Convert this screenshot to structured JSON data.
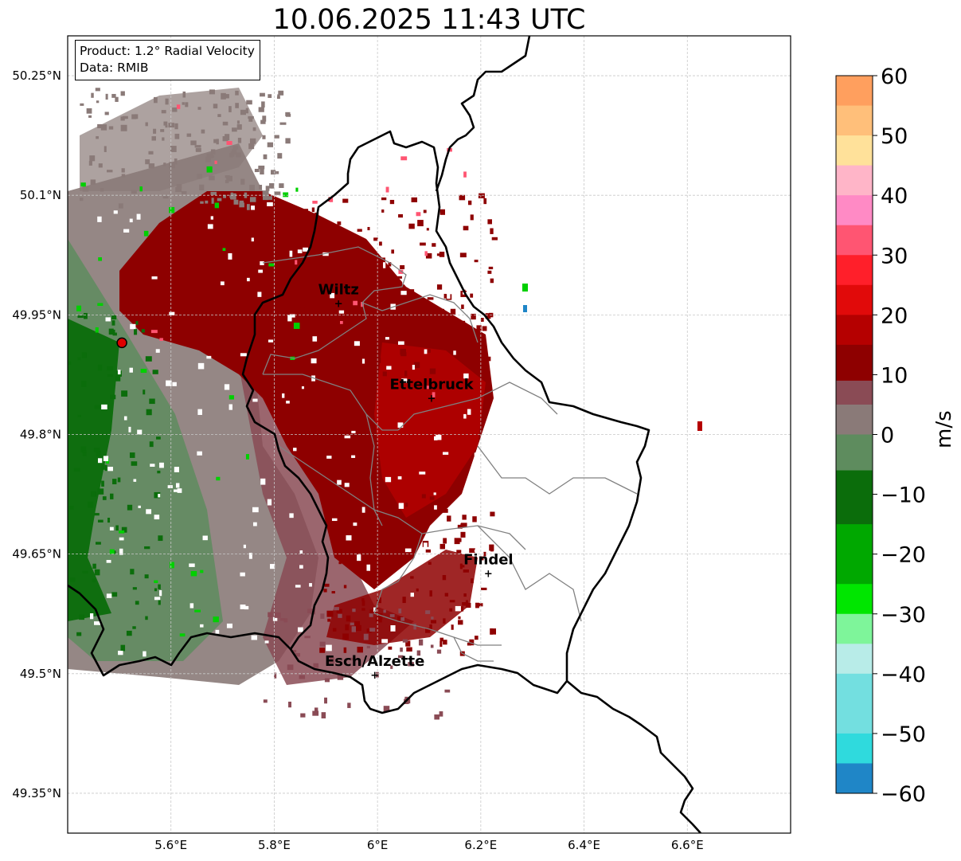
{
  "title": "10.06.2025 11:43 UTC",
  "info": {
    "product": "Product: 1.2° Radial Velocity",
    "data": "Data: RMIB"
  },
  "colorbar": {
    "label": "m/s",
    "min": -60,
    "max": 60,
    "ticks": [
      "60",
      "50",
      "40",
      "30",
      "20",
      "10",
      "0",
      "−10",
      "−20",
      "−30",
      "−40",
      "−50",
      "−60"
    ],
    "tick_values": [
      60,
      50,
      40,
      30,
      20,
      10,
      0,
      -10,
      -20,
      -30,
      -40,
      -50,
      -60
    ],
    "colors": [
      {
        "from": 55,
        "to": 60,
        "color": "#ff9f5e"
      },
      {
        "from": 50,
        "to": 55,
        "color": "#ffbf7a"
      },
      {
        "from": 45,
        "to": 50,
        "color": "#ffe19a"
      },
      {
        "from": 40,
        "to": 45,
        "color": "#ffb5c8"
      },
      {
        "from": 35,
        "to": 40,
        "color": "#ff8ac5"
      },
      {
        "from": 30,
        "to": 35,
        "color": "#ff5572"
      },
      {
        "from": 25,
        "to": 30,
        "color": "#ff1f2a"
      },
      {
        "from": 20,
        "to": 25,
        "color": "#e10a0a"
      },
      {
        "from": 15,
        "to": 20,
        "color": "#b50000"
      },
      {
        "from": 9,
        "to": 15,
        "color": "#8e0000"
      },
      {
        "from": 5,
        "to": 9,
        "color": "#8a4b55"
      },
      {
        "from": 0,
        "to": 5,
        "color": "#8a7a78"
      },
      {
        "from": -6,
        "to": 0,
        "color": "#5e8c5e"
      },
      {
        "from": -15,
        "to": -6,
        "color": "#0b6d0b"
      },
      {
        "from": -25,
        "to": -15,
        "color": "#00a800"
      },
      {
        "from": -30,
        "to": -25,
        "color": "#00e600"
      },
      {
        "from": -35,
        "to": -30,
        "color": "#7ef59a"
      },
      {
        "from": -40,
        "to": -35,
        "color": "#b8ece8"
      },
      {
        "from": -50,
        "to": -40,
        "color": "#73dfe0"
      },
      {
        "from": -55,
        "to": -50,
        "color": "#2fdadd"
      },
      {
        "from": -60,
        "to": -55,
        "color": "#1f86c7"
      }
    ]
  },
  "axes": {
    "x_ticks": [
      "5.6°E",
      "5.8°E",
      "6°E",
      "6.2°E",
      "6.4°E",
      "6.6°E"
    ],
    "x_values": [
      5.6,
      5.8,
      6.0,
      6.2,
      6.4,
      6.6
    ],
    "y_ticks": [
      "50.25°N",
      "50.1°N",
      "49.95°N",
      "49.8°N",
      "49.65°N",
      "49.5°N",
      "49.35°N"
    ],
    "y_values": [
      50.25,
      50.1,
      49.95,
      49.8,
      49.65,
      49.5,
      49.35
    ],
    "lon_range": [
      5.4,
      6.8
    ],
    "lat_range": [
      49.3,
      50.3
    ],
    "grid": true
  },
  "radar": {
    "lon": 5.505,
    "lat": 49.915
  },
  "cities": [
    {
      "name": "Wiltz",
      "lon": 5.92,
      "lat": 49.966
    },
    {
      "name": "Ettelbruck",
      "lon": 6.1,
      "lat": 49.847
    },
    {
      "name": "Findel",
      "lon": 6.21,
      "lat": 49.627
    },
    {
      "name": "Esch/Alzette",
      "lon": 5.99,
      "lat": 49.5
    }
  ],
  "colors": {
    "border": "#000000",
    "canton": "#808080",
    "grid": "#c8c8c8",
    "radar_marker": "#e00000"
  }
}
